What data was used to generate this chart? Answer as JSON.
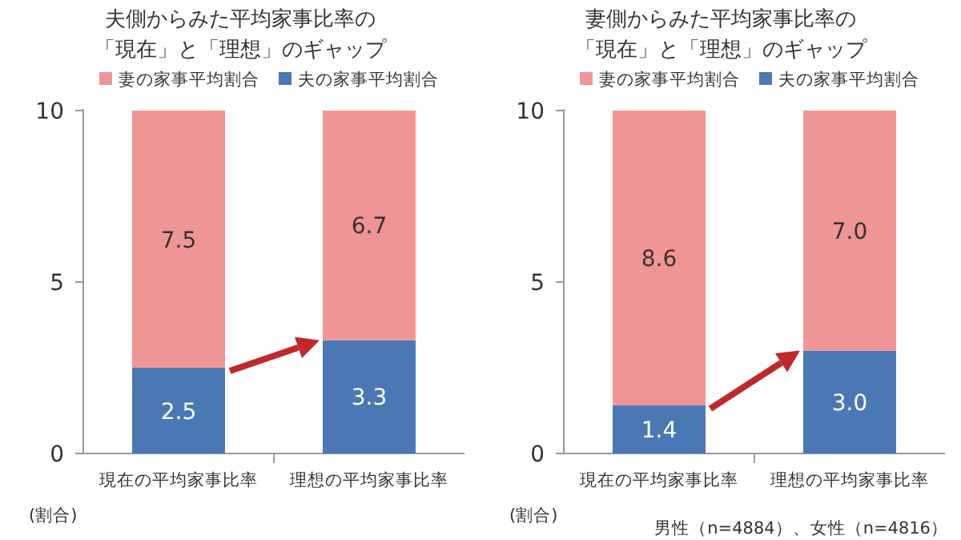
{
  "chart_data": [
    {
      "type": "bar",
      "title": "夫側からみた平均家事比率の「現在」と「理想」のギャップ",
      "categories": [
        "現在の平均家事比率",
        "理想の平均家事比率"
      ],
      "stacked": true,
      "series": [
        {
          "name": "夫の家事平均割合",
          "color": "#4a78b4",
          "values": [
            2.5,
            3.3
          ],
          "value_labels": [
            "2.5",
            "3.3"
          ]
        },
        {
          "name": "妻の家事平均割合",
          "color": "#f09595",
          "values": [
            7.5,
            6.7
          ],
          "value_labels": [
            "7.5",
            "6.7"
          ]
        }
      ],
      "ylim": [
        0,
        10
      ],
      "yticks": [
        0,
        5,
        10
      ],
      "legend": "top",
      "annotations": [
        "(割合)"
      ]
    },
    {
      "type": "bar",
      "title": "妻側からみた平均家事比率の「現在」と「理想」のギャップ",
      "categories": [
        "現在の平均家事比率",
        "理想の平均家事比率"
      ],
      "stacked": true,
      "series": [
        {
          "name": "夫の家事平均割合",
          "color": "#4a78b4",
          "values": [
            1.4,
            3.0
          ],
          "value_labels": [
            "1.4",
            "3.0"
          ]
        },
        {
          "name": "妻の家事平均割合",
          "color": "#f09595",
          "values": [
            8.6,
            7.0
          ],
          "value_labels": [
            "8.6",
            "7.0"
          ]
        }
      ],
      "ylim": [
        0,
        10
      ],
      "yticks": [
        0,
        5,
        10
      ],
      "legend": "top",
      "annotations": [
        "(割合)",
        "男性（n=4884）、女性（n=4816）"
      ]
    }
  ]
}
